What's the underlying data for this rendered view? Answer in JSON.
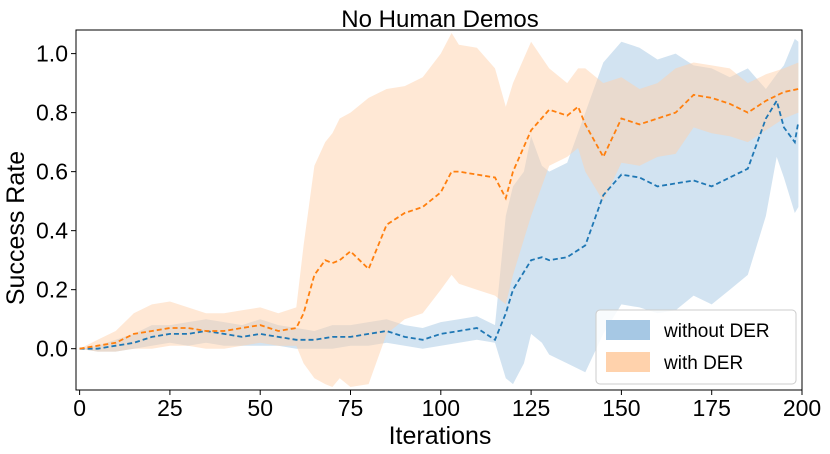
{
  "chart_data": {
    "type": "line",
    "title": "No Human Demos",
    "xlabel": "Iterations",
    "ylabel": "Success Rate",
    "xlim": [
      -1,
      200
    ],
    "ylim": [
      -0.14,
      1.08
    ],
    "xticks": [
      0,
      25,
      50,
      75,
      100,
      125,
      150,
      175,
      200
    ],
    "xtick_labels": [
      "0",
      "25",
      "50",
      "75",
      "100",
      "125",
      "150",
      "175",
      "200"
    ],
    "yticks": [
      0.0,
      0.2,
      0.4,
      0.6,
      0.8,
      1.0
    ],
    "ytick_labels": [
      "0.0",
      "0.2",
      "0.4",
      "0.6",
      "0.8",
      "1.0"
    ],
    "grid": false,
    "legend": "bottom-right",
    "series": [
      {
        "name": "without DER",
        "color": "#1f77b4",
        "band_color": "#a6c8e4",
        "x": [
          0,
          5,
          10,
          15,
          20,
          25,
          30,
          35,
          40,
          45,
          50,
          55,
          60,
          65,
          70,
          75,
          80,
          85,
          90,
          95,
          100,
          105,
          110,
          115,
          118,
          120,
          123,
          125,
          128,
          130,
          135,
          140,
          145,
          150,
          155,
          160,
          165,
          170,
          175,
          180,
          185,
          190,
          193,
          195,
          198,
          199
        ],
        "mean": [
          0.0,
          0.0,
          0.01,
          0.02,
          0.04,
          0.05,
          0.05,
          0.06,
          0.05,
          0.04,
          0.05,
          0.04,
          0.03,
          0.03,
          0.04,
          0.04,
          0.05,
          0.06,
          0.04,
          0.03,
          0.05,
          0.06,
          0.07,
          0.03,
          0.12,
          0.2,
          0.26,
          0.3,
          0.31,
          0.3,
          0.31,
          0.35,
          0.52,
          0.59,
          0.58,
          0.55,
          0.56,
          0.57,
          0.55,
          0.58,
          0.61,
          0.78,
          0.84,
          0.75,
          0.7,
          0.77
        ],
        "upper": [
          0.0,
          0.01,
          0.03,
          0.05,
          0.08,
          0.08,
          0.09,
          0.1,
          0.09,
          0.08,
          0.1,
          0.08,
          0.07,
          0.06,
          0.08,
          0.08,
          0.09,
          0.1,
          0.08,
          0.07,
          0.09,
          0.1,
          0.11,
          0.08,
          0.45,
          0.55,
          0.6,
          0.72,
          0.62,
          0.6,
          0.63,
          0.8,
          0.97,
          1.04,
          1.02,
          0.98,
          1.0,
          0.96,
          0.95,
          0.92,
          0.95,
          0.88,
          0.93,
          0.96,
          1.05,
          1.04
        ],
        "lower": [
          0.0,
          -0.01,
          -0.01,
          0.0,
          0.01,
          0.02,
          0.01,
          0.02,
          0.01,
          0.01,
          0.01,
          0.01,
          0.0,
          0.0,
          0.0,
          0.01,
          0.01,
          0.02,
          0.01,
          0.0,
          0.01,
          0.02,
          0.03,
          0.02,
          -0.1,
          -0.12,
          -0.05,
          0.05,
          0.02,
          -0.02,
          -0.05,
          -0.08,
          0.05,
          0.15,
          0.14,
          0.12,
          0.13,
          0.18,
          0.15,
          0.2,
          0.25,
          0.45,
          0.65,
          0.58,
          0.46,
          0.48
        ]
      },
      {
        "name": "with DER",
        "color": "#ff7f0e",
        "band_color": "#ffd2ac",
        "x": [
          0,
          5,
          10,
          15,
          20,
          25,
          30,
          35,
          40,
          45,
          50,
          55,
          60,
          62,
          65,
          68,
          70,
          72,
          75,
          80,
          85,
          90,
          95,
          100,
          103,
          105,
          110,
          115,
          118,
          120,
          125,
          130,
          135,
          138,
          140,
          145,
          150,
          155,
          160,
          165,
          170,
          175,
          180,
          185,
          190,
          195,
          199
        ],
        "mean": [
          0.0,
          0.01,
          0.02,
          0.05,
          0.06,
          0.07,
          0.07,
          0.06,
          0.06,
          0.07,
          0.08,
          0.06,
          0.07,
          0.12,
          0.25,
          0.3,
          0.29,
          0.3,
          0.33,
          0.27,
          0.42,
          0.46,
          0.48,
          0.53,
          0.6,
          0.6,
          0.59,
          0.58,
          0.51,
          0.6,
          0.74,
          0.81,
          0.79,
          0.82,
          0.76,
          0.65,
          0.78,
          0.76,
          0.78,
          0.8,
          0.86,
          0.85,
          0.83,
          0.8,
          0.84,
          0.87,
          0.88
        ],
        "upper": [
          0.0,
          0.03,
          0.06,
          0.12,
          0.15,
          0.16,
          0.14,
          0.12,
          0.12,
          0.13,
          0.14,
          0.12,
          0.14,
          0.35,
          0.62,
          0.7,
          0.73,
          0.78,
          0.8,
          0.85,
          0.88,
          0.89,
          0.92,
          1.0,
          1.07,
          1.03,
          1.02,
          0.95,
          0.82,
          0.9,
          1.04,
          0.95,
          0.9,
          0.95,
          0.95,
          0.9,
          0.92,
          0.88,
          0.9,
          0.95,
          0.97,
          0.96,
          0.95,
          0.9,
          0.93,
          0.95,
          0.97
        ],
        "lower": [
          0.0,
          -0.01,
          -0.01,
          0.0,
          0.0,
          0.01,
          0.01,
          0.0,
          0.0,
          0.01,
          0.02,
          0.01,
          0.01,
          -0.05,
          -0.1,
          -0.12,
          -0.13,
          -0.1,
          -0.13,
          -0.12,
          0.05,
          0.1,
          0.12,
          0.2,
          0.25,
          0.22,
          0.2,
          0.18,
          0.15,
          0.25,
          0.45,
          0.62,
          0.65,
          0.68,
          0.6,
          0.5,
          0.63,
          0.62,
          0.65,
          0.66,
          0.75,
          0.73,
          0.72,
          0.7,
          0.74,
          0.78,
          0.8
        ]
      }
    ]
  }
}
